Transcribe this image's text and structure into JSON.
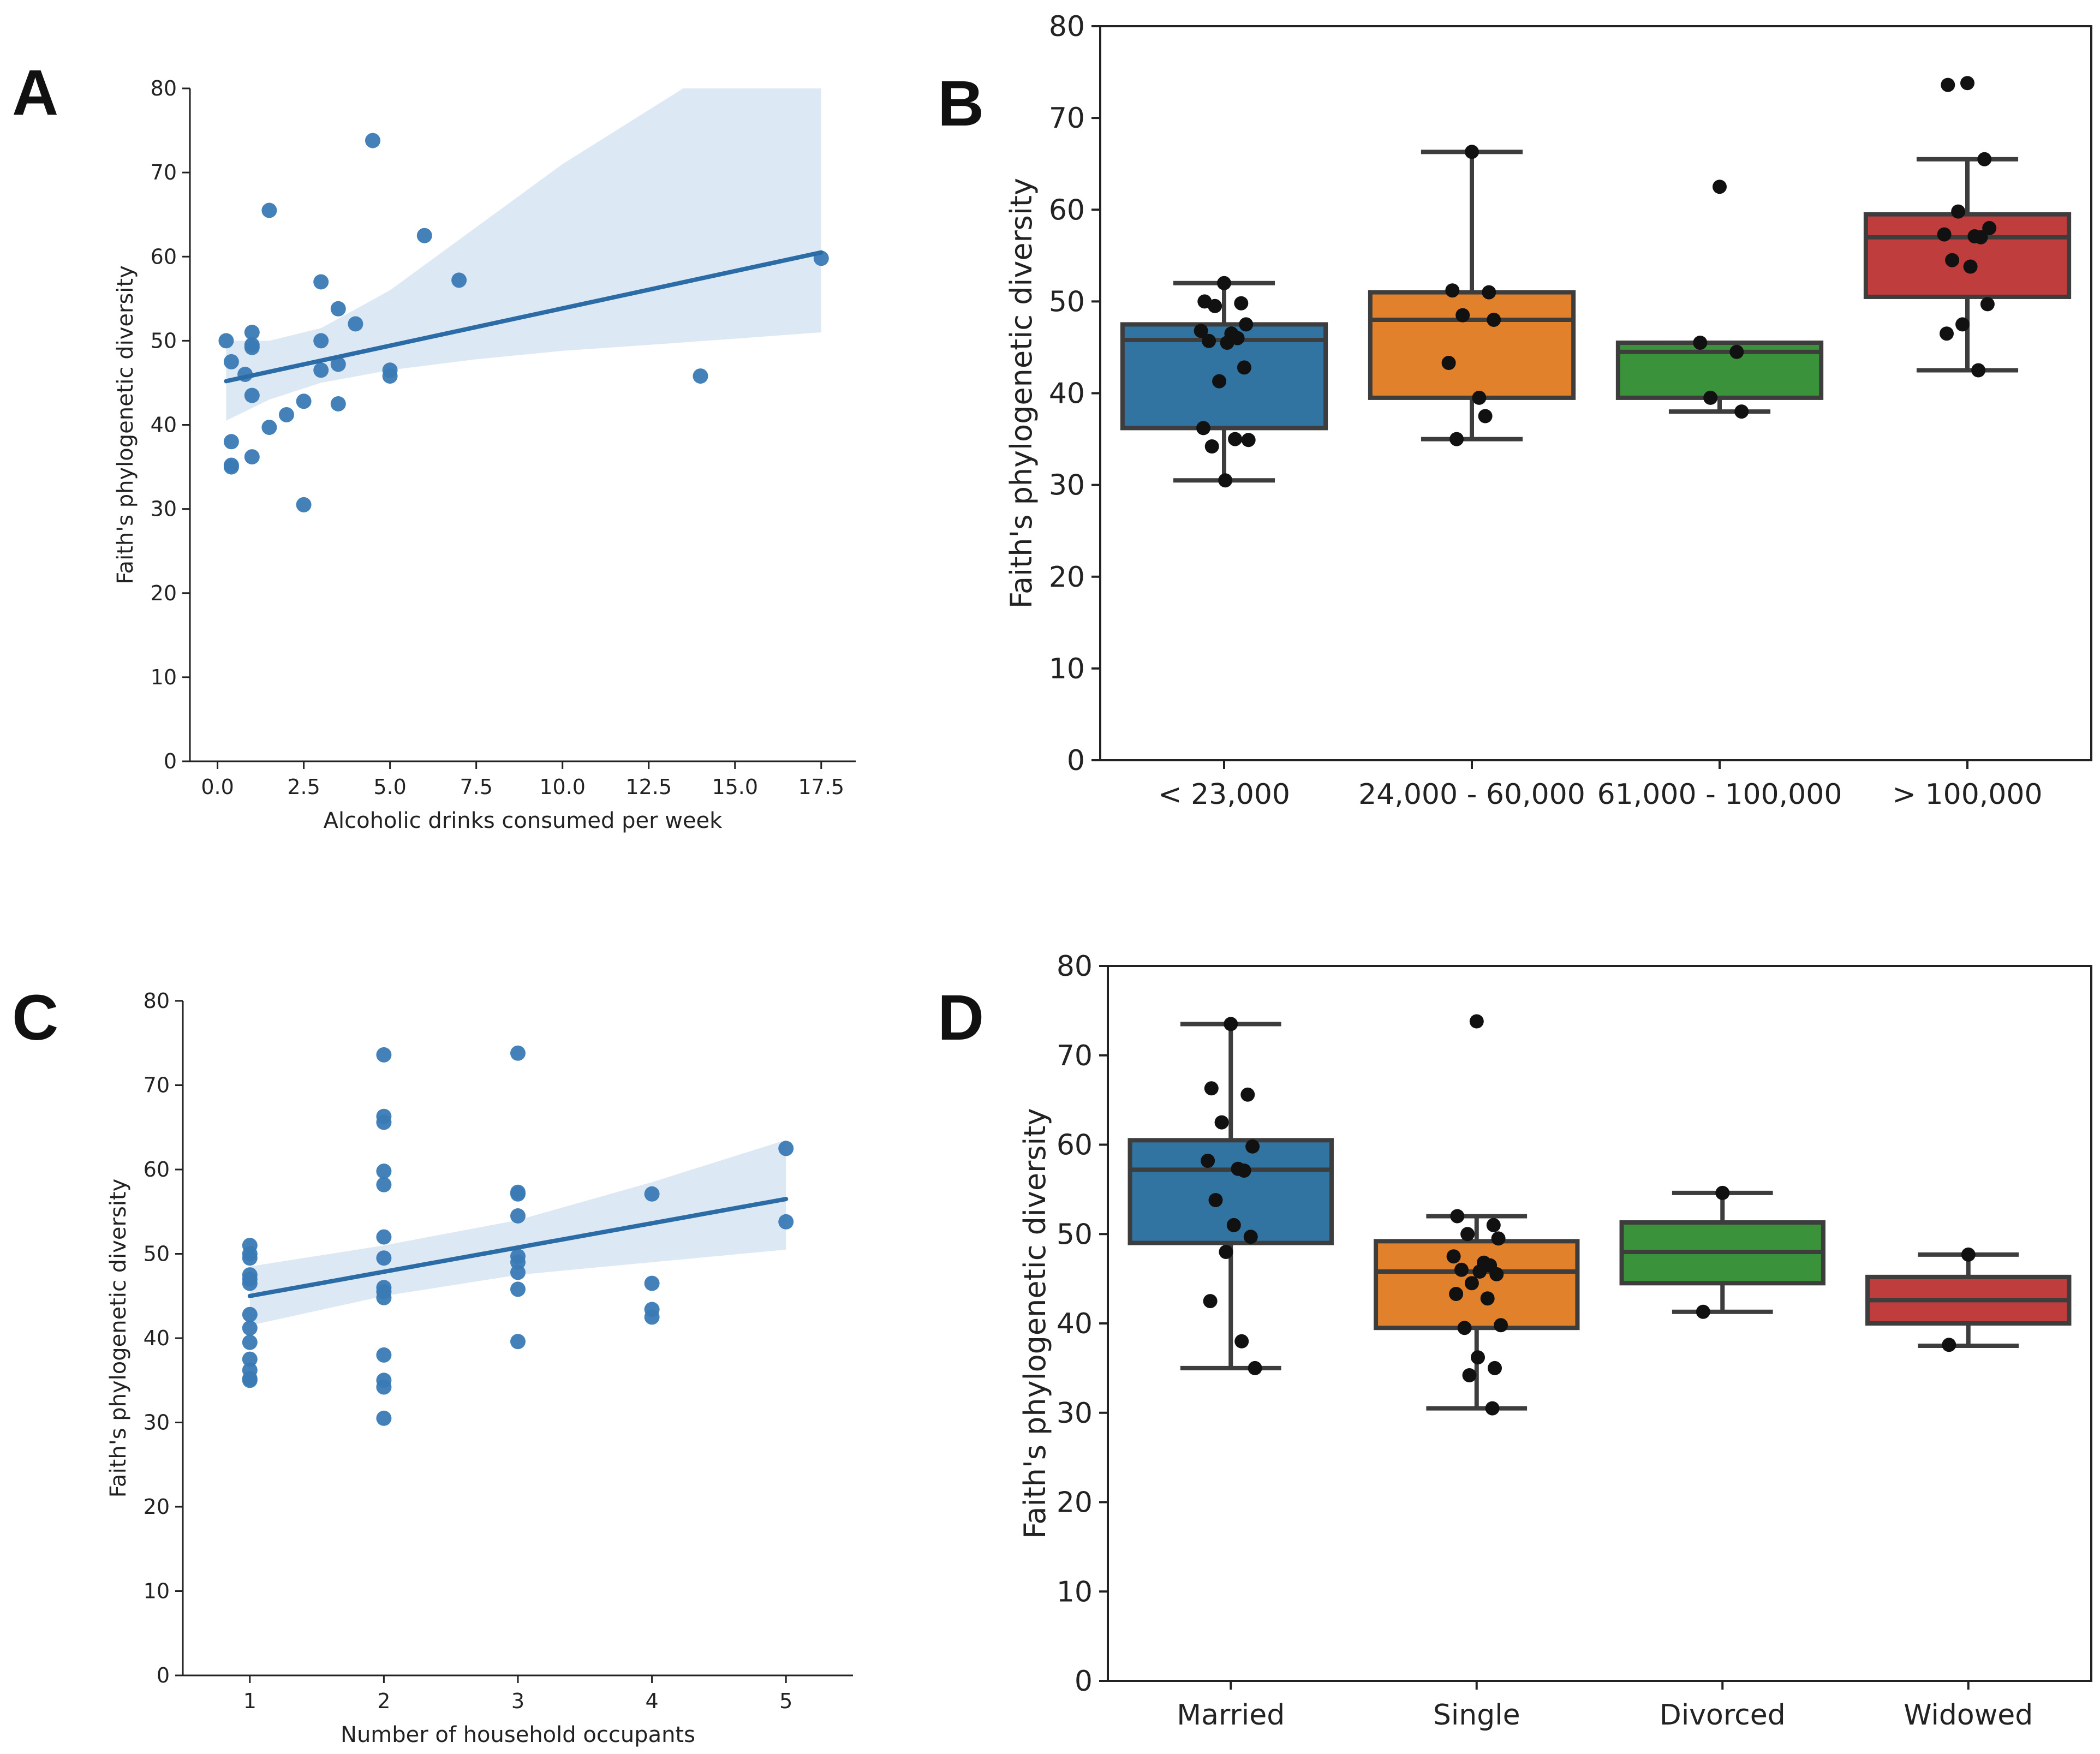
{
  "panels": {
    "a": "A",
    "b": "B",
    "c": "C",
    "d": "D"
  },
  "chart_data": [
    {
      "id": "A",
      "type": "scatter",
      "xlabel": "Alcoholic drinks consumed per week",
      "ylabel": "Faith's phylogenetic diversity",
      "xlim": [
        -0.8,
        18.5
      ],
      "ylim": [
        0,
        80
      ],
      "xticks": [
        0.0,
        2.5,
        5.0,
        7.5,
        10.0,
        12.5,
        15.0,
        17.5
      ],
      "xtick_labels": [
        "0.0",
        "2.5",
        "5.0",
        "7.5",
        "10.0",
        "12.5",
        "15.0",
        "17.5"
      ],
      "yticks": [
        0,
        10,
        20,
        30,
        40,
        50,
        60,
        70,
        80
      ],
      "points": [
        [
          0.25,
          50.0
        ],
        [
          0.4,
          47.5
        ],
        [
          0.4,
          38.0
        ],
        [
          0.4,
          35.2
        ],
        [
          0.4,
          35.0
        ],
        [
          0.8,
          46.0
        ],
        [
          1.0,
          51.0
        ],
        [
          1.0,
          49.5
        ],
        [
          1.0,
          49.2
        ],
        [
          1.0,
          43.5
        ],
        [
          1.0,
          36.2
        ],
        [
          1.5,
          65.5
        ],
        [
          1.5,
          39.7
        ],
        [
          2.0,
          41.2
        ],
        [
          2.5,
          42.8
        ],
        [
          2.5,
          30.5
        ],
        [
          3.0,
          57.0
        ],
        [
          3.0,
          50.0
        ],
        [
          3.0,
          46.5
        ],
        [
          3.5,
          53.8
        ],
        [
          3.5,
          47.2
        ],
        [
          3.5,
          42.5
        ],
        [
          4.0,
          52.0
        ],
        [
          4.5,
          73.8
        ],
        [
          5.0,
          46.5
        ],
        [
          5.0,
          45.8
        ],
        [
          6.0,
          62.5
        ],
        [
          7.0,
          57.2
        ],
        [
          14.0,
          45.8
        ],
        [
          17.5,
          59.8
        ]
      ],
      "regression": {
        "x": [
          0.25,
          17.5
        ],
        "y": [
          45.2,
          60.5
        ]
      },
      "ci_band": {
        "x": [
          0.25,
          1.5,
          3.0,
          5.0,
          7.5,
          10.0,
          13.5,
          17.5
        ],
        "lower": [
          40.5,
          43.0,
          45.0,
          46.5,
          47.8,
          48.8,
          49.8,
          51.0
        ],
        "upper": [
          50.0,
          50.0,
          51.5,
          56.0,
          63.5,
          71.0,
          80.0,
          80.0
        ]
      },
      "color": "#3a7ab5",
      "band_color": "#dce9f4"
    },
    {
      "id": "B",
      "type": "box",
      "ylabel": "Faith's phylogenetic diversity",
      "ylim": [
        0,
        80
      ],
      "yticks": [
        0,
        10,
        20,
        30,
        40,
        50,
        60,
        70,
        80
      ],
      "categories": [
        "< 23,000",
        "24,000 - 60,000",
        "61,000 - 100,000",
        "> 100,000"
      ],
      "colors": [
        "#3274a1",
        "#e1812c",
        "#3a923a",
        "#c03d3e"
      ],
      "boxes": [
        {
          "whisker_low": 30.5,
          "q1": 36.2,
          "median": 45.8,
          "q3": 47.5,
          "whisker_high": 52.0,
          "points": [
            52.0,
            50.0,
            49.8,
            49.5,
            47.5,
            46.8,
            46.5,
            46.0,
            45.7,
            45.5,
            42.8,
            41.3,
            36.2,
            35.0,
            34.9,
            34.2,
            30.5
          ]
        },
        {
          "whisker_low": 35.0,
          "q1": 39.5,
          "median": 48.0,
          "q3": 51.0,
          "whisker_high": 66.3,
          "points": [
            66.3,
            51.2,
            51.0,
            48.5,
            48.0,
            43.3,
            39.5,
            37.5,
            35.0
          ]
        },
        {
          "whisker_low": 38.0,
          "q1": 39.5,
          "median": 44.5,
          "q3": 45.5,
          "whisker_high": 45.5,
          "points": [
            62.5,
            45.5,
            44.5,
            39.5,
            38.0
          ]
        },
        {
          "whisker_low": 42.5,
          "q1": 50.5,
          "median": 57.0,
          "q3": 59.5,
          "whisker_high": 65.5,
          "points": [
            73.8,
            73.6,
            65.5,
            59.8,
            58.0,
            57.3,
            57.1,
            57.0,
            54.5,
            53.8,
            49.7,
            47.5,
            46.5,
            42.5
          ]
        }
      ]
    },
    {
      "id": "C",
      "type": "scatter",
      "xlabel": "Number of household occupants",
      "ylabel": "Faith's phylogenetic diversity",
      "xlim": [
        0.5,
        5.5
      ],
      "ylim": [
        0,
        80
      ],
      "xticks": [
        1,
        2,
        3,
        4,
        5
      ],
      "xtick_labels": [
        "1",
        "2",
        "3",
        "4",
        "5"
      ],
      "yticks": [
        0,
        10,
        20,
        30,
        40,
        50,
        60,
        70,
        80
      ],
      "points": [
        [
          1,
          51.0
        ],
        [
          1,
          50.0
        ],
        [
          1,
          49.5
        ],
        [
          1,
          47.5
        ],
        [
          1,
          47.0
        ],
        [
          1,
          46.5
        ],
        [
          1,
          42.8
        ],
        [
          1,
          41.2
        ],
        [
          1,
          39.5
        ],
        [
          1,
          37.5
        ],
        [
          1,
          36.2
        ],
        [
          1,
          35.2
        ],
        [
          1,
          35.0
        ],
        [
          2,
          73.6
        ],
        [
          2,
          66.3
        ],
        [
          2,
          65.6
        ],
        [
          2,
          59.8
        ],
        [
          2,
          58.2
        ],
        [
          2,
          52.0
        ],
        [
          2,
          49.5
        ],
        [
          2,
          46.0
        ],
        [
          2,
          45.5
        ],
        [
          2,
          44.8
        ],
        [
          2,
          38.0
        ],
        [
          2,
          35.0
        ],
        [
          2,
          34.2
        ],
        [
          2,
          30.5
        ],
        [
          3,
          73.8
        ],
        [
          3,
          57.3
        ],
        [
          3,
          57.1
        ],
        [
          3,
          54.5
        ],
        [
          3,
          49.7
        ],
        [
          3,
          49.0
        ],
        [
          3,
          47.8
        ],
        [
          3,
          45.8
        ],
        [
          3,
          39.6
        ],
        [
          4,
          57.1
        ],
        [
          4,
          46.5
        ],
        [
          4,
          43.4
        ],
        [
          4,
          42.5
        ],
        [
          5,
          62.5
        ],
        [
          5,
          53.8
        ]
      ],
      "regression": {
        "x": [
          1,
          5
        ],
        "y": [
          45.0,
          56.5
        ]
      },
      "ci_band": {
        "x": [
          1,
          2,
          3,
          4,
          5
        ],
        "lower": [
          41.5,
          45.0,
          47.5,
          49.0,
          50.5
        ],
        "upper": [
          48.5,
          51.0,
          54.0,
          58.5,
          63.5
        ]
      },
      "color": "#3a7ab5",
      "band_color": "#dce9f4"
    },
    {
      "id": "D",
      "type": "box",
      "ylabel": "Faith's phylogenetic diversity",
      "ylim": [
        0,
        80
      ],
      "yticks": [
        0,
        10,
        20,
        30,
        40,
        50,
        60,
        70,
        80
      ],
      "categories": [
        "Married",
        "Single",
        "Divorced",
        "Widowed"
      ],
      "colors": [
        "#3274a1",
        "#e1812c",
        "#3a923a",
        "#c03d3e"
      ],
      "boxes": [
        {
          "whisker_low": 35.0,
          "q1": 49.0,
          "median": 57.2,
          "q3": 60.5,
          "whisker_high": 73.5,
          "points": [
            73.5,
            66.3,
            65.6,
            62.5,
            59.8,
            58.2,
            57.3,
            57.1,
            53.8,
            51.0,
            49.7,
            48.0,
            42.5,
            38.0,
            35.0
          ]
        },
        {
          "whisker_low": 30.5,
          "q1": 39.5,
          "median": 45.8,
          "q3": 49.2,
          "whisker_high": 52.0,
          "points": [
            73.8,
            52.0,
            51.0,
            50.0,
            49.5,
            47.5,
            46.8,
            46.5,
            46.0,
            45.8,
            45.5,
            44.5,
            43.3,
            42.8,
            39.8,
            39.5,
            36.2,
            35.0,
            34.2,
            30.5
          ]
        },
        {
          "whisker_low": 41.3,
          "q1": 44.5,
          "median": 48.0,
          "q3": 51.3,
          "whisker_high": 54.6,
          "points": [
            54.6,
            41.3
          ]
        },
        {
          "whisker_low": 37.5,
          "q1": 40.0,
          "median": 42.6,
          "q3": 45.2,
          "whisker_high": 47.7,
          "points": [
            47.7,
            37.6
          ]
        }
      ]
    }
  ]
}
